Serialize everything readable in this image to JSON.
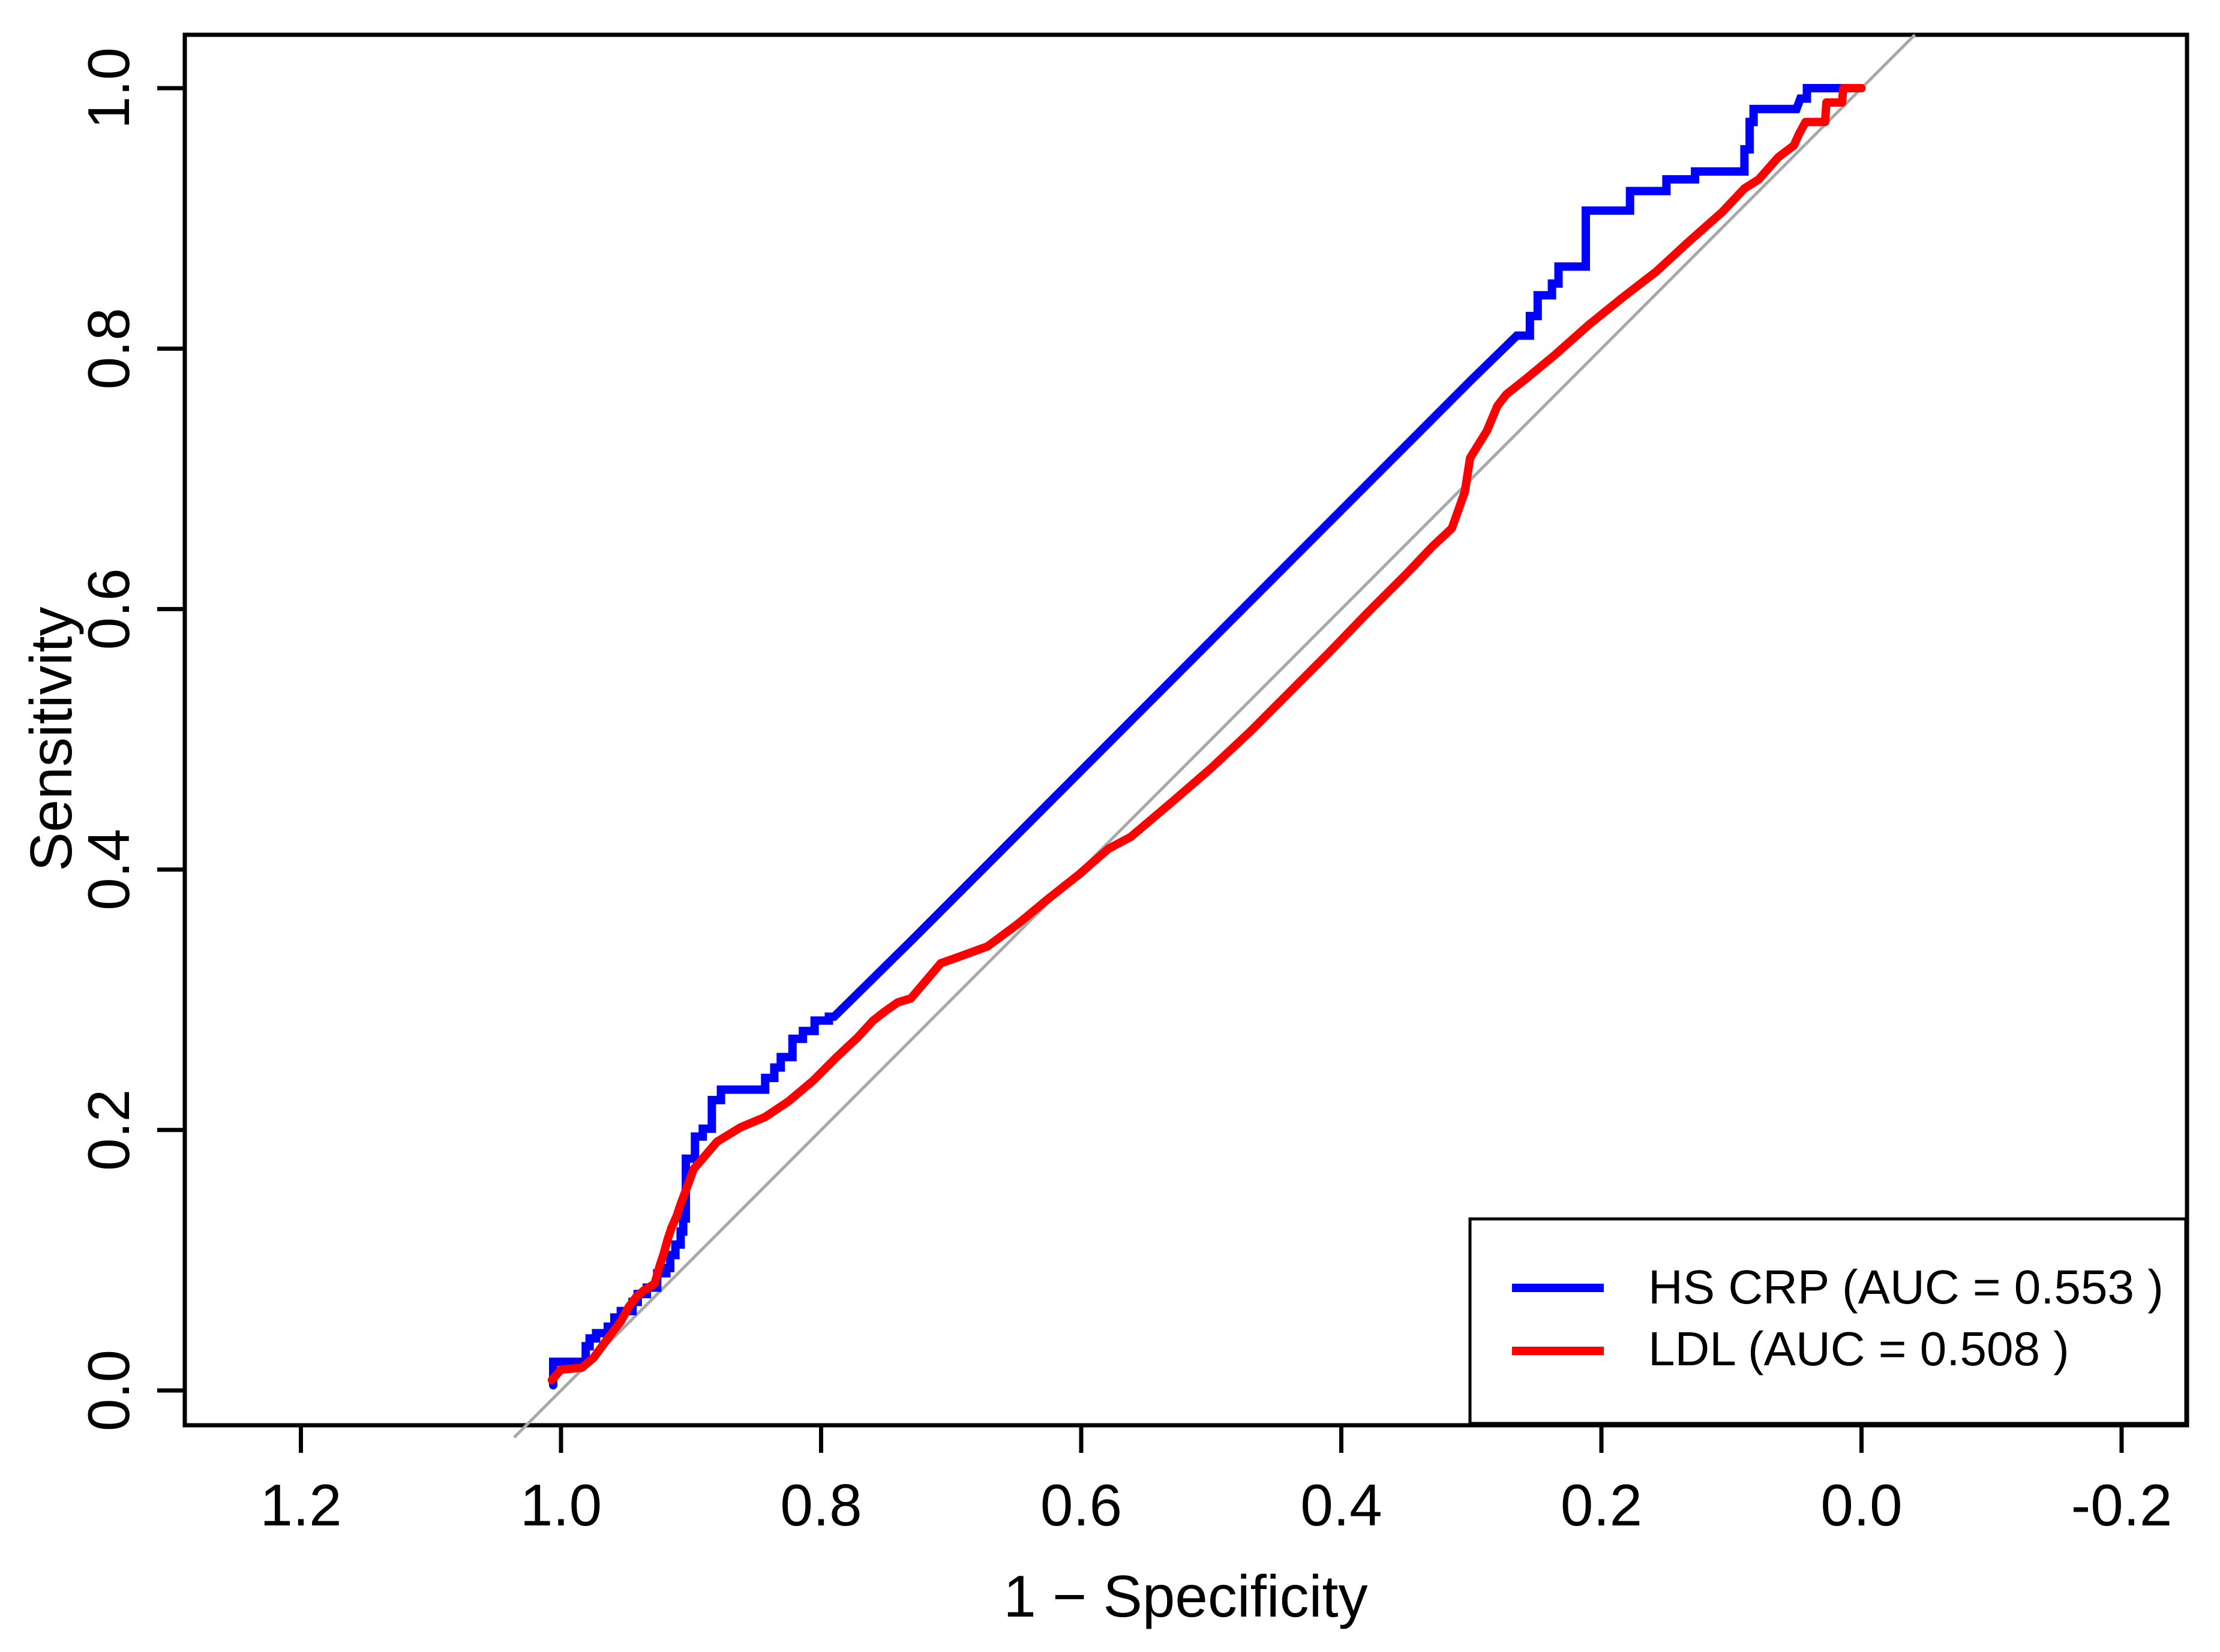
{
  "figure": {
    "kind": "ROC curve comparison plot",
    "background": "#ffffff"
  },
  "axes": {
    "x": {
      "label": "1 − Specificity",
      "tick_labels": [
        "1.2",
        "1.0",
        "0.8",
        "0.6",
        "0.4",
        "0.2",
        "0.0",
        "-0.2"
      ],
      "tick_values": [
        1.2,
        1.0,
        0.8,
        0.6,
        0.4,
        0.2,
        0.0,
        -0.2
      ]
    },
    "y": {
      "label": "Sensitivity",
      "tick_labels": [
        "0.0",
        "0.2",
        "0.4",
        "0.6",
        "0.8",
        "1.0"
      ],
      "tick_values": [
        0.0,
        0.2,
        0.4,
        0.6,
        0.8,
        1.0
      ]
    }
  },
  "legend": {
    "position": "bottom-right",
    "items": [
      {
        "label": "HS CRP (AUC = 0.553 )",
        "series": "HS CRP",
        "auc": 0.553,
        "color": "#0000FF"
      },
      {
        "label": "LDL (AUC = 0.508 )",
        "series": "LDL",
        "auc": 0.508,
        "color": "#FF0000"
      }
    ]
  },
  "colors": {
    "hs_crp": "#0000FF",
    "ldl": "#FF0000",
    "reference": "#A8A8A8",
    "frame": "#000000",
    "text": "#000000"
  },
  "chart_data": {
    "type": "line",
    "title": "",
    "xlabel": "1 − Specificity",
    "ylabel": "Sensitivity",
    "x_axis_reversed": true,
    "xlim": [
      1.29,
      -0.25
    ],
    "ylim": [
      -0.027,
      1.041
    ],
    "grid": false,
    "legend_position": "bottom-right",
    "series": [
      {
        "name": "HS CRP",
        "auc": 0.553,
        "color": "#0000FF",
        "style": "step",
        "points": [
          [
            1.006,
            0.004
          ],
          [
            1.006,
            0.022
          ],
          [
            0.981,
            0.022
          ],
          [
            0.981,
            0.034
          ],
          [
            0.978,
            0.034
          ],
          [
            0.978,
            0.04
          ],
          [
            0.973,
            0.04
          ],
          [
            0.973,
            0.044
          ],
          [
            0.964,
            0.044
          ],
          [
            0.964,
            0.049
          ],
          [
            0.959,
            0.049
          ],
          [
            0.959,
            0.056
          ],
          [
            0.954,
            0.056
          ],
          [
            0.954,
            0.061
          ],
          [
            0.945,
            0.061
          ],
          [
            0.945,
            0.068
          ],
          [
            0.941,
            0.068
          ],
          [
            0.941,
            0.074
          ],
          [
            0.934,
            0.074
          ],
          [
            0.934,
            0.079
          ],
          [
            0.926,
            0.079
          ],
          [
            0.926,
            0.09
          ],
          [
            0.919,
            0.09
          ],
          [
            0.919,
            0.094
          ],
          [
            0.916,
            0.094
          ],
          [
            0.916,
            0.104
          ],
          [
            0.912,
            0.104
          ],
          [
            0.912,
            0.112
          ],
          [
            0.908,
            0.112
          ],
          [
            0.908,
            0.122
          ],
          [
            0.906,
            0.122
          ],
          [
            0.906,
            0.132
          ],
          [
            0.904,
            0.132
          ],
          [
            0.904,
            0.178
          ],
          [
            0.897,
            0.178
          ],
          [
            0.897,
            0.195
          ],
          [
            0.891,
            0.195
          ],
          [
            0.891,
            0.201
          ],
          [
            0.884,
            0.201
          ],
          [
            0.884,
            0.223
          ],
          [
            0.877,
            0.223
          ],
          [
            0.877,
            0.231
          ],
          [
            0.843,
            0.231
          ],
          [
            0.843,
            0.24
          ],
          [
            0.836,
            0.24
          ],
          [
            0.836,
            0.248
          ],
          [
            0.831,
            0.248
          ],
          [
            0.831,
            0.256
          ],
          [
            0.822,
            0.256
          ],
          [
            0.822,
            0.27
          ],
          [
            0.814,
            0.27
          ],
          [
            0.814,
            0.276
          ],
          [
            0.805,
            0.276
          ],
          [
            0.805,
            0.284
          ],
          [
            0.794,
            0.284
          ],
          [
            0.794,
            0.287
          ],
          [
            0.79,
            0.287
          ],
          [
            0.73,
            0.346
          ],
          [
            0.65,
            0.426
          ],
          [
            0.55,
            0.526
          ],
          [
            0.45,
            0.626
          ],
          [
            0.35,
            0.726
          ],
          [
            0.3,
            0.776
          ],
          [
            0.265,
            0.81
          ],
          [
            0.255,
            0.81
          ],
          [
            0.255,
            0.825
          ],
          [
            0.249,
            0.825
          ],
          [
            0.249,
            0.841
          ],
          [
            0.238,
            0.841
          ],
          [
            0.238,
            0.85
          ],
          [
            0.233,
            0.85
          ],
          [
            0.233,
            0.863
          ],
          [
            0.212,
            0.863
          ],
          [
            0.212,
            0.906
          ],
          [
            0.178,
            0.906
          ],
          [
            0.178,
            0.921
          ],
          [
            0.15,
            0.921
          ],
          [
            0.15,
            0.93
          ],
          [
            0.128,
            0.93
          ],
          [
            0.128,
            0.936
          ],
          [
            0.09,
            0.936
          ],
          [
            0.09,
            0.953
          ],
          [
            0.086,
            0.953
          ],
          [
            0.086,
            0.974
          ],
          [
            0.083,
            0.974
          ],
          [
            0.083,
            0.984
          ],
          [
            0.05,
            0.984
          ],
          [
            0.047,
            0.992
          ],
          [
            0.042,
            0.992
          ],
          [
            0.042,
            1.0
          ],
          [
            0.015,
            1.0
          ]
        ]
      },
      {
        "name": "LDL",
        "auc": 0.508,
        "color": "#FF0000",
        "style": "smooth",
        "points": [
          [
            1.007,
            0.008
          ],
          [
            1.0,
            0.016
          ],
          [
            0.984,
            0.0175
          ],
          [
            0.975,
            0.025
          ],
          [
            0.964,
            0.04
          ],
          [
            0.954,
            0.053
          ],
          [
            0.948,
            0.064
          ],
          [
            0.942,
            0.072
          ],
          [
            0.936,
            0.077
          ],
          [
            0.928,
            0.082
          ],
          [
            0.924,
            0.096
          ],
          [
            0.921,
            0.105
          ],
          [
            0.918,
            0.116
          ],
          [
            0.915,
            0.125
          ],
          [
            0.911,
            0.134
          ],
          [
            0.908,
            0.143
          ],
          [
            0.905,
            0.151
          ],
          [
            0.902,
            0.159
          ],
          [
            0.898,
            0.17
          ],
          [
            0.88,
            0.191
          ],
          [
            0.862,
            0.202
          ],
          [
            0.843,
            0.21
          ],
          [
            0.825,
            0.222
          ],
          [
            0.806,
            0.238
          ],
          [
            0.788,
            0.256
          ],
          [
            0.772,
            0.271
          ],
          [
            0.76,
            0.284
          ],
          [
            0.751,
            0.291
          ],
          [
            0.741,
            0.298
          ],
          [
            0.731,
            0.301
          ],
          [
            0.708,
            0.328
          ],
          [
            0.694,
            0.333
          ],
          [
            0.672,
            0.341
          ],
          [
            0.649,
            0.358
          ],
          [
            0.626,
            0.377
          ],
          [
            0.602,
            0.396
          ],
          [
            0.579,
            0.416
          ],
          [
            0.562,
            0.425
          ],
          [
            0.53,
            0.452
          ],
          [
            0.5,
            0.478
          ],
          [
            0.47,
            0.506
          ],
          [
            0.44,
            0.536
          ],
          [
            0.41,
            0.566
          ],
          [
            0.38,
            0.597
          ],
          [
            0.35,
            0.627
          ],
          [
            0.33,
            0.648
          ],
          [
            0.315,
            0.662
          ],
          [
            0.305,
            0.69
          ],
          [
            0.301,
            0.716
          ],
          [
            0.288,
            0.737
          ],
          [
            0.28,
            0.756
          ],
          [
            0.273,
            0.765
          ],
          [
            0.259,
            0.776
          ],
          [
            0.236,
            0.795
          ],
          [
            0.21,
            0.818
          ],
          [
            0.184,
            0.839
          ],
          [
            0.158,
            0.859
          ],
          [
            0.133,
            0.882
          ],
          [
            0.107,
            0.905
          ],
          [
            0.09,
            0.923
          ],
          [
            0.079,
            0.93
          ],
          [
            0.064,
            0.947
          ],
          [
            0.052,
            0.956
          ],
          [
            0.048,
            0.965
          ],
          [
            0.043,
            0.974
          ],
          [
            0.028,
            0.974
          ],
          [
            0.027,
            0.989
          ],
          [
            0.015,
            0.989
          ],
          [
            0.014,
            1.0
          ],
          [
            0.0,
            1.0
          ]
        ]
      },
      {
        "name": "reference",
        "color": "#A8A8A8",
        "style": "straight",
        "points": [
          [
            1.036,
            -0.036
          ],
          [
            -0.041,
            1.041
          ]
        ]
      }
    ]
  }
}
